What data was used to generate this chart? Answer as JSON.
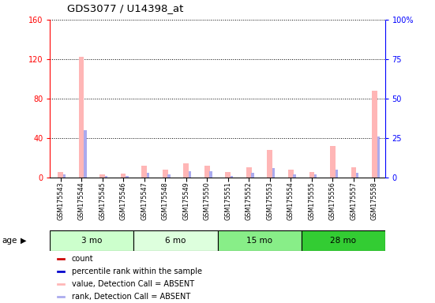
{
  "title": "GDS3077 / U14398_at",
  "samples": [
    "GSM175543",
    "GSM175544",
    "GSM175545",
    "GSM175546",
    "GSM175547",
    "GSM175548",
    "GSM175549",
    "GSM175550",
    "GSM175551",
    "GSM175552",
    "GSM175553",
    "GSM175554",
    "GSM175555",
    "GSM175556",
    "GSM175557",
    "GSM175558"
  ],
  "value_pink": [
    5,
    122,
    3,
    4,
    12,
    8,
    14,
    12,
    5,
    10,
    28,
    8,
    5,
    32,
    10,
    88
  ],
  "rank_blue_pct": [
    2,
    30,
    1,
    1,
    3,
    2,
    4,
    4,
    1,
    3,
    6,
    2,
    2,
    5,
    3,
    26
  ],
  "groups": [
    {
      "label": "3 mo",
      "start": 0,
      "end": 4,
      "color": "#ccffcc"
    },
    {
      "label": "6 mo",
      "start": 4,
      "end": 8,
      "color": "#ddffdd"
    },
    {
      "label": "15 mo",
      "start": 8,
      "end": 12,
      "color": "#88ee88"
    },
    {
      "label": "28 mo",
      "start": 12,
      "end": 16,
      "color": "#44cc44"
    }
  ],
  "left_ylim": [
    0,
    160
  ],
  "right_ylim": [
    0,
    100
  ],
  "left_yticks": [
    0,
    40,
    80,
    120,
    160
  ],
  "right_yticks": [
    0,
    25,
    50,
    75,
    100
  ],
  "right_yticklabels": [
    "0",
    "25",
    "50",
    "75",
    "100%"
  ],
  "pink_color": "#ffb6b6",
  "blue_color": "#aaaaee",
  "col_bg_color": "#d0d0d0",
  "plot_bg_color": "#ffffff",
  "legend_colors": [
    "#cc0000",
    "#0000cc",
    "#ffb6b6",
    "#aaaaee"
  ],
  "legend_labels": [
    "count",
    "percentile rank within the sample",
    "value, Detection Call = ABSENT",
    "rank, Detection Call = ABSENT"
  ]
}
